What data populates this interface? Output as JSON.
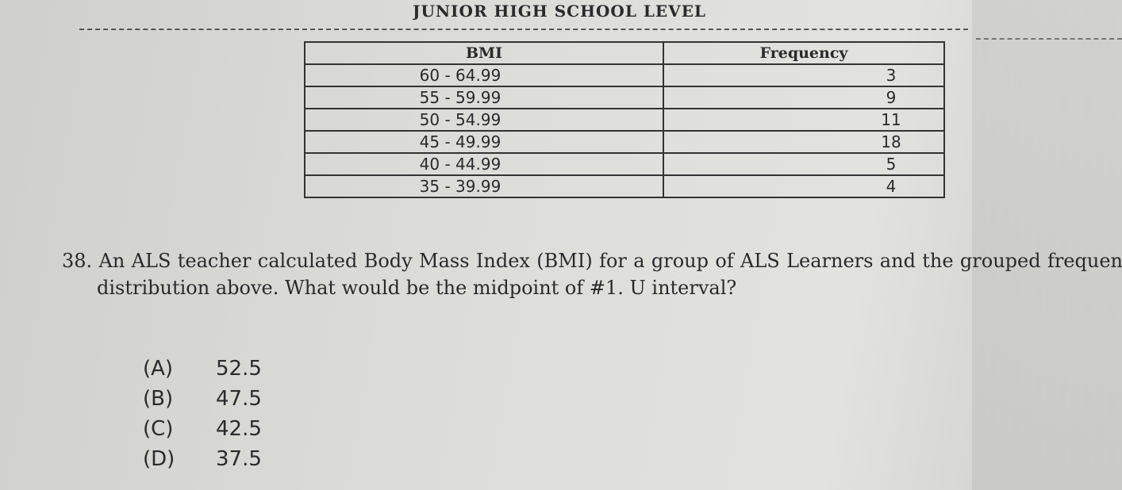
{
  "header": {
    "title": "JUNIOR HIGH SCHOOL LEVEL"
  },
  "table": {
    "columns": [
      "BMI",
      "Frequency"
    ],
    "rows": [
      [
        "60 - 64.99",
        3
      ],
      [
        "55 - 59.99",
        9
      ],
      [
        "50 - 54.99",
        11
      ],
      [
        "45 - 49.99",
        18
      ],
      [
        "40 - 44.99",
        5
      ],
      [
        "35 - 39.99",
        4
      ]
    ]
  },
  "question": {
    "number": "38.",
    "text": "An ALS teacher calculated Body Mass Index (BMI) for a group of ALS Learners and the grouped frequency distribution above. What would be the midpoint of #1. U interval?",
    "options": [
      {
        "label": "(A)",
        "value": 52.5
      },
      {
        "label": "(B)",
        "value": 47.5
      },
      {
        "label": "(C)",
        "value": 42.5
      },
      {
        "label": "(D)",
        "value": 37.5
      }
    ]
  }
}
